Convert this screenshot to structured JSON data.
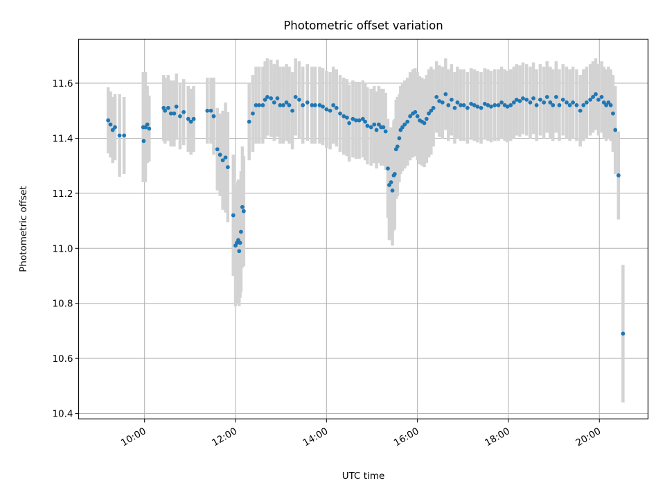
{
  "chart_data": {
    "type": "scatter",
    "title": "Photometric offset variation",
    "xlabel": "UTC time",
    "ylabel": "Photometric offset",
    "x_unit": "hours UTC",
    "xlim": [
      8.55,
      21.07
    ],
    "ylim": [
      10.38,
      11.76
    ],
    "x_ticks": [
      {
        "value": 10,
        "label": "10:00"
      },
      {
        "value": 12,
        "label": "12:00"
      },
      {
        "value": 14,
        "label": "14:00"
      },
      {
        "value": 16,
        "label": "16:00"
      },
      {
        "value": 18,
        "label": "18:00"
      },
      {
        "value": 20,
        "label": "20:00"
      }
    ],
    "y_ticks": [
      {
        "value": 10.4,
        "label": "10.4"
      },
      {
        "value": 10.6,
        "label": "10.6"
      },
      {
        "value": 10.8,
        "label": "10.8"
      },
      {
        "value": 11.0,
        "label": "11.0"
      },
      {
        "value": 11.2,
        "label": "11.2"
      },
      {
        "value": 11.4,
        "label": "11.4"
      },
      {
        "value": 11.6,
        "label": "11.6"
      }
    ],
    "grid": true,
    "marker_color": "#1f77b4",
    "errorbar_color": "#d3d3d3",
    "series": [
      {
        "points": [
          [
            9.2,
            11.465,
            0.12
          ],
          [
            9.25,
            11.45,
            0.12
          ],
          [
            9.3,
            11.43,
            0.12
          ],
          [
            9.35,
            11.44,
            0.12
          ],
          [
            9.45,
            11.41,
            0.15
          ],
          [
            9.55,
            11.41,
            0.14
          ],
          [
            9.97,
            11.44,
            0.2
          ],
          [
            9.98,
            11.39,
            0.15
          ],
          [
            10.02,
            11.44,
            0.2
          ],
          [
            10.06,
            11.45,
            0.14
          ],
          [
            10.1,
            11.435,
            0.12
          ],
          [
            10.42,
            11.51,
            0.12
          ],
          [
            10.45,
            11.5,
            0.12
          ],
          [
            10.52,
            11.51,
            0.12
          ],
          [
            10.58,
            11.49,
            0.12
          ],
          [
            10.65,
            11.49,
            0.12
          ],
          [
            10.7,
            11.515,
            0.12
          ],
          [
            10.78,
            11.48,
            0.12
          ],
          [
            10.86,
            11.495,
            0.12
          ],
          [
            10.96,
            11.47,
            0.12
          ],
          [
            11.02,
            11.46,
            0.12
          ],
          [
            11.08,
            11.47,
            0.12
          ],
          [
            11.38,
            11.5,
            0.12
          ],
          [
            11.46,
            11.5,
            0.12
          ],
          [
            11.52,
            11.48,
            0.14
          ],
          [
            11.6,
            11.36,
            0.15
          ],
          [
            11.66,
            11.34,
            0.15
          ],
          [
            11.72,
            11.32,
            0.18
          ],
          [
            11.78,
            11.33,
            0.2
          ],
          [
            11.83,
            11.295,
            0.2
          ],
          [
            11.95,
            11.12,
            0.22
          ],
          [
            12.0,
            11.01,
            0.22
          ],
          [
            12.03,
            11.02,
            0.22
          ],
          [
            12.06,
            11.03,
            0.22
          ],
          [
            12.08,
            10.99,
            0.2
          ],
          [
            12.1,
            11.02,
            0.2
          ],
          [
            12.12,
            11.06,
            0.22
          ],
          [
            12.15,
            11.15,
            0.22
          ],
          [
            12.18,
            11.135,
            0.2
          ],
          [
            12.3,
            11.46,
            0.14
          ],
          [
            12.38,
            11.49,
            0.14
          ],
          [
            12.45,
            11.52,
            0.14
          ],
          [
            12.52,
            11.52,
            0.14
          ],
          [
            12.6,
            11.52,
            0.14
          ],
          [
            12.65,
            11.54,
            0.14
          ],
          [
            12.7,
            11.55,
            0.14
          ],
          [
            12.78,
            11.545,
            0.14
          ],
          [
            12.85,
            11.53,
            0.14
          ],
          [
            12.92,
            11.545,
            0.14
          ],
          [
            12.98,
            11.52,
            0.14
          ],
          [
            13.05,
            11.52,
            0.14
          ],
          [
            13.12,
            11.53,
            0.14
          ],
          [
            13.18,
            11.52,
            0.14
          ],
          [
            13.25,
            11.5,
            0.14
          ],
          [
            13.32,
            11.55,
            0.14
          ],
          [
            13.4,
            11.54,
            0.14
          ],
          [
            13.48,
            11.52,
            0.14
          ],
          [
            13.58,
            11.53,
            0.14
          ],
          [
            13.68,
            11.52,
            0.14
          ],
          [
            13.75,
            11.52,
            0.14
          ],
          [
            13.85,
            11.52,
            0.14
          ],
          [
            13.92,
            11.515,
            0.14
          ],
          [
            14.0,
            11.505,
            0.14
          ],
          [
            14.08,
            11.5,
            0.14
          ],
          [
            14.15,
            11.52,
            0.14
          ],
          [
            14.22,
            11.51,
            0.14
          ],
          [
            14.3,
            11.49,
            0.14
          ],
          [
            14.38,
            11.48,
            0.14
          ],
          [
            14.45,
            11.475,
            0.14
          ],
          [
            14.5,
            11.455,
            0.14
          ],
          [
            14.58,
            11.47,
            0.14
          ],
          [
            14.65,
            11.465,
            0.14
          ],
          [
            14.72,
            11.465,
            0.14
          ],
          [
            14.8,
            11.47,
            0.14
          ],
          [
            14.85,
            11.46,
            0.14
          ],
          [
            14.9,
            11.445,
            0.14
          ],
          [
            14.98,
            11.44,
            0.14
          ],
          [
            15.05,
            11.45,
            0.14
          ],
          [
            15.1,
            11.43,
            0.14
          ],
          [
            15.15,
            11.45,
            0.14
          ],
          [
            15.2,
            11.44,
            0.14
          ],
          [
            15.25,
            11.44,
            0.14
          ],
          [
            15.3,
            11.425,
            0.14
          ],
          [
            15.35,
            11.29,
            0.18
          ],
          [
            15.38,
            11.23,
            0.2
          ],
          [
            15.42,
            11.24,
            0.2
          ],
          [
            15.45,
            11.21,
            0.2
          ],
          [
            15.48,
            11.265,
            0.2
          ],
          [
            15.5,
            11.27,
            0.2
          ],
          [
            15.53,
            11.36,
            0.18
          ],
          [
            15.56,
            11.37,
            0.18
          ],
          [
            15.6,
            11.4,
            0.16
          ],
          [
            15.63,
            11.43,
            0.16
          ],
          [
            15.67,
            11.44,
            0.16
          ],
          [
            15.72,
            11.45,
            0.16
          ],
          [
            15.78,
            11.46,
            0.16
          ],
          [
            15.84,
            11.48,
            0.16
          ],
          [
            15.9,
            11.49,
            0.16
          ],
          [
            15.95,
            11.495,
            0.16
          ],
          [
            16.0,
            11.48,
            0.16
          ],
          [
            16.05,
            11.465,
            0.16
          ],
          [
            16.1,
            11.46,
            0.16
          ],
          [
            16.15,
            11.455,
            0.16
          ],
          [
            16.2,
            11.47,
            0.16
          ],
          [
            16.25,
            11.49,
            0.16
          ],
          [
            16.3,
            11.5,
            0.16
          ],
          [
            16.35,
            11.51,
            0.14
          ],
          [
            16.42,
            11.55,
            0.13
          ],
          [
            16.48,
            11.535,
            0.13
          ],
          [
            16.55,
            11.53,
            0.13
          ],
          [
            16.62,
            11.56,
            0.13
          ],
          [
            16.68,
            11.52,
            0.13
          ],
          [
            16.75,
            11.54,
            0.13
          ],
          [
            16.82,
            11.51,
            0.13
          ],
          [
            16.88,
            11.53,
            0.13
          ],
          [
            16.95,
            11.52,
            0.13
          ],
          [
            17.02,
            11.52,
            0.13
          ],
          [
            17.1,
            11.51,
            0.13
          ],
          [
            17.18,
            11.525,
            0.13
          ],
          [
            17.25,
            11.52,
            0.13
          ],
          [
            17.32,
            11.515,
            0.13
          ],
          [
            17.4,
            11.51,
            0.13
          ],
          [
            17.48,
            11.525,
            0.13
          ],
          [
            17.55,
            11.52,
            0.13
          ],
          [
            17.62,
            11.515,
            0.13
          ],
          [
            17.7,
            11.52,
            0.13
          ],
          [
            17.78,
            11.52,
            0.13
          ],
          [
            17.85,
            11.53,
            0.13
          ],
          [
            17.92,
            11.52,
            0.13
          ],
          [
            17.98,
            11.515,
            0.13
          ],
          [
            18.05,
            11.52,
            0.13
          ],
          [
            18.12,
            11.53,
            0.13
          ],
          [
            18.18,
            11.54,
            0.13
          ],
          [
            18.25,
            11.535,
            0.13
          ],
          [
            18.32,
            11.545,
            0.13
          ],
          [
            18.4,
            11.54,
            0.13
          ],
          [
            18.48,
            11.53,
            0.13
          ],
          [
            18.55,
            11.545,
            0.13
          ],
          [
            18.62,
            11.52,
            0.13
          ],
          [
            18.7,
            11.54,
            0.13
          ],
          [
            18.78,
            11.53,
            0.13
          ],
          [
            18.85,
            11.55,
            0.13
          ],
          [
            18.92,
            11.53,
            0.13
          ],
          [
            18.98,
            11.52,
            0.13
          ],
          [
            19.05,
            11.55,
            0.13
          ],
          [
            19.12,
            11.52,
            0.13
          ],
          [
            19.2,
            11.54,
            0.13
          ],
          [
            19.28,
            11.53,
            0.13
          ],
          [
            19.35,
            11.52,
            0.13
          ],
          [
            19.42,
            11.53,
            0.13
          ],
          [
            19.5,
            11.52,
            0.13
          ],
          [
            19.58,
            11.5,
            0.13
          ],
          [
            19.65,
            11.52,
            0.13
          ],
          [
            19.72,
            11.53,
            0.13
          ],
          [
            19.8,
            11.54,
            0.13
          ],
          [
            19.86,
            11.55,
            0.13
          ],
          [
            19.92,
            11.56,
            0.13
          ],
          [
            19.98,
            11.54,
            0.13
          ],
          [
            20.05,
            11.55,
            0.13
          ],
          [
            20.1,
            11.53,
            0.13
          ],
          [
            20.15,
            11.52,
            0.13
          ],
          [
            20.2,
            11.53,
            0.13
          ],
          [
            20.25,
            11.52,
            0.13
          ],
          [
            20.3,
            11.49,
            0.14
          ],
          [
            20.35,
            11.43,
            0.16
          ],
          [
            20.42,
            11.265,
            0.16
          ],
          [
            20.52,
            10.69,
            0.25
          ]
        ]
      }
    ]
  }
}
